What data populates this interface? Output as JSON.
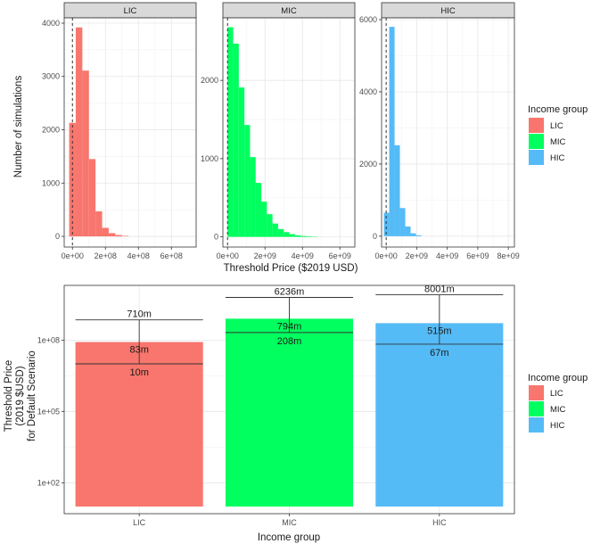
{
  "colors": {
    "LIC": "#F8766D",
    "MIC": "#00FF5F",
    "HIC": "#55BBF7"
  },
  "chart_data": [
    {
      "type": "histogram-facets",
      "xlabel": "Threshold Price ($2019 USD)",
      "ylabel": "Number of simulations",
      "legend": {
        "title": "Income group",
        "position": "right",
        "entries": [
          "LIC",
          "MIC",
          "HIC"
        ]
      },
      "facets": [
        {
          "name": "LIC",
          "bin_width": 40000000,
          "bin_start": -20000000,
          "counts": [
            2130,
            3920,
            3110,
            1450,
            470,
            160,
            60,
            25,
            10
          ],
          "xlim": [
            -50000000,
            750000000
          ],
          "ylim": [
            -200,
            4100
          ],
          "x_ticks": [
            0,
            200000000,
            400000000,
            600000000
          ],
          "x_tick_labels": [
            "0e+00",
            "2e+08",
            "4e+08",
            "6e+08"
          ],
          "y_ticks": [
            0,
            1000,
            2000,
            3000,
            4000
          ],
          "y_tick_labels": [
            "0",
            "1000",
            "2000",
            "3000",
            "4000"
          ],
          "reference_line_x": 0
        },
        {
          "name": "MIC",
          "bin_width": 300000000,
          "bin_start": 0,
          "counts": [
            2680,
            2470,
            1910,
            1430,
            1020,
            690,
            450,
            290,
            170,
            100,
            60,
            35,
            20,
            12,
            7,
            4
          ],
          "xlim": [
            -250000000,
            6800000000
          ],
          "ylim": [
            -130,
            2800
          ],
          "x_ticks": [
            0,
            2000000000,
            4000000000,
            6000000000
          ],
          "x_tick_labels": [
            "0e+00",
            "2e+09",
            "4e+09",
            "6e+09"
          ],
          "y_ticks": [
            0,
            1000,
            2000
          ],
          "y_tick_labels": [
            "0",
            "1000",
            "2000"
          ],
          "reference_line_x": 0
        },
        {
          "name": "HIC",
          "bin_width": 350000000,
          "bin_start": -150000000,
          "counts": [
            650,
            5800,
            2520,
            780,
            270,
            80,
            25
          ],
          "xlim": [
            -300000000,
            8400000000
          ],
          "ylim": [
            -300,
            6050
          ],
          "x_ticks": [
            0,
            2000000000,
            4000000000,
            6000000000,
            8000000000
          ],
          "x_tick_labels": [
            "0e+00",
            "2e+09",
            "4e+09",
            "6e+09",
            "8e+09"
          ],
          "y_ticks": [
            0,
            2000,
            4000,
            6000
          ],
          "y_tick_labels": [
            "0",
            "2000",
            "4000",
            "6000"
          ],
          "reference_line_x": 0
        }
      ]
    },
    {
      "type": "bar",
      "scale": "log10",
      "xlabel": "Income group",
      "ylabel": [
        "Threshold Price",
        "(2019 $USD)",
        "for Default Scenario"
      ],
      "categories": [
        "LIC",
        "MIC",
        "HIC"
      ],
      "values": [
        83000000,
        794000000,
        515000000
      ],
      "lower": [
        10000000,
        208000000,
        67000000
      ],
      "upper": [
        710000000,
        6236000000,
        8001000000
      ],
      "value_labels": [
        "83m",
        "794m",
        "515m"
      ],
      "lower_labels": [
        "10m",
        "208m",
        "67m"
      ],
      "upper_labels": [
        "710m",
        "6236m",
        "8001m"
      ],
      "ylim": [
        5,
        20000000000
      ],
      "y_ticks": [
        100,
        100000,
        100000000
      ],
      "y_tick_labels": [
        "1e+02",
        "1e+05",
        "1e+08"
      ],
      "legend": {
        "title": "Income group",
        "position": "right",
        "entries": [
          "LIC",
          "MIC",
          "HIC"
        ]
      }
    }
  ]
}
